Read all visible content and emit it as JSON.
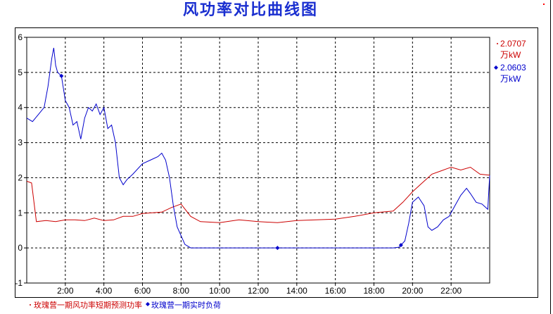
{
  "chart_data": {
    "type": "line",
    "title": "风功率对比曲线图",
    "x_unit": "hour",
    "xlim": [
      0,
      24
    ],
    "ylim": [
      -1,
      6
    ],
    "y_ticks": [
      -1,
      0,
      1,
      2,
      3,
      4,
      5,
      6
    ],
    "x_ticks": [
      {
        "x": 2,
        "label": "2:00"
      },
      {
        "x": 4,
        "label": "4:00"
      },
      {
        "x": 6,
        "label": "6:00"
      },
      {
        "x": 8,
        "label": "8:00"
      },
      {
        "x": 10,
        "label": "10:00"
      },
      {
        "x": 12,
        "label": "12:00"
      },
      {
        "x": 14,
        "label": "14:00"
      },
      {
        "x": 16,
        "label": "16:00"
      },
      {
        "x": 18,
        "label": "18:00"
      },
      {
        "x": 20,
        "label": "20:00"
      },
      {
        "x": 22,
        "label": "22:00"
      }
    ],
    "grid": true,
    "legend_position": "bottom",
    "series": [
      {
        "name": "玫瑰营一期风功率短期预测功率",
        "color": "#cc0000",
        "readout_value": "2.0707",
        "readout_unit": "万kW",
        "x": [
          0,
          0.25,
          0.5,
          1,
          1.5,
          2,
          2.5,
          3,
          3.5,
          4,
          4.5,
          5,
          5.5,
          6,
          6.5,
          7,
          7.5,
          8,
          8.5,
          9,
          10,
          11,
          12,
          13,
          14,
          15,
          16,
          17,
          18,
          19,
          19.5,
          20,
          20.5,
          21,
          21.5,
          22,
          22.5,
          23,
          23.5,
          24
        ],
        "values": [
          1.9,
          1.85,
          0.75,
          0.78,
          0.75,
          0.8,
          0.8,
          0.78,
          0.85,
          0.78,
          0.8,
          0.9,
          0.9,
          0.98,
          1.0,
          1.02,
          1.15,
          1.25,
          0.9,
          0.75,
          0.72,
          0.8,
          0.75,
          0.72,
          0.78,
          0.8,
          0.82,
          0.9,
          1.0,
          1.05,
          1.3,
          1.6,
          1.85,
          2.1,
          2.2,
          2.3,
          2.22,
          2.3,
          2.1,
          2.07
        ]
      },
      {
        "name": "玫瑰营一期实时负荷",
        "color": "#0000cc",
        "readout_value": "2.0603",
        "readout_unit": "万kW",
        "x": [
          0,
          0.3,
          0.6,
          0.9,
          1.1,
          1.3,
          1.4,
          1.5,
          1.6,
          1.8,
          2.0,
          2.2,
          2.4,
          2.6,
          2.8,
          3.0,
          3.2,
          3.4,
          3.6,
          3.8,
          4.0,
          4.2,
          4.4,
          4.6,
          4.8,
          5.0,
          5.2,
          5.5,
          6.0,
          6.4,
          6.8,
          7.0,
          7.2,
          7.4,
          7.6,
          7.8,
          8.0,
          8.2,
          8.5,
          8.8,
          9.0,
          10,
          11,
          12,
          13,
          14,
          15,
          16,
          17,
          18,
          19,
          19.3,
          19.6,
          19.8,
          20.0,
          20.3,
          20.6,
          20.8,
          21.0,
          21.3,
          21.6,
          21.9,
          22.2,
          22.5,
          22.8,
          23.0,
          23.3,
          23.6,
          23.9,
          24.0
        ],
        "values": [
          3.7,
          3.6,
          3.8,
          4.0,
          4.6,
          5.4,
          5.7,
          5.2,
          5.0,
          4.9,
          4.2,
          4.0,
          3.5,
          3.6,
          3.1,
          3.7,
          4.0,
          3.9,
          4.1,
          3.8,
          4.0,
          3.4,
          3.5,
          3.0,
          2.0,
          1.8,
          1.95,
          2.1,
          2.4,
          2.5,
          2.6,
          2.7,
          2.5,
          2.0,
          1.2,
          0.6,
          0.35,
          0.1,
          0.0,
          0.0,
          0.0,
          0.0,
          0.0,
          0.0,
          0.0,
          0.0,
          0.0,
          0.0,
          0.0,
          0.0,
          0.0,
          0.02,
          0.2,
          0.7,
          1.3,
          1.45,
          1.2,
          0.6,
          0.5,
          0.6,
          0.8,
          0.9,
          1.2,
          1.5,
          1.7,
          1.55,
          1.3,
          1.25,
          1.1,
          2.06
        ],
        "markers_x": [
          1.8,
          13,
          19.4
        ]
      }
    ]
  }
}
